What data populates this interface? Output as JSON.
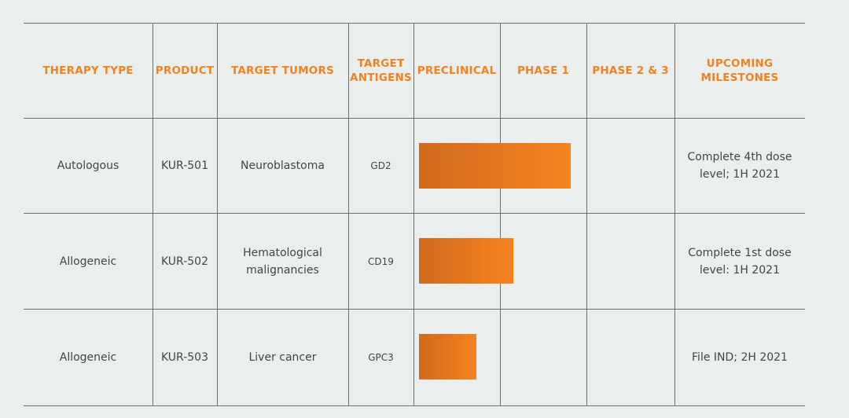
{
  "headers": {
    "therapy_type": "THERAPY TYPE",
    "product": "PRODUCT",
    "target_tumors": "TARGET TUMORS",
    "target_antigens": "TARGET\nANTIGENS",
    "preclinical": "PRECLINICAL",
    "phase1": "PHASE 1",
    "phase23": "PHASE 2 & 3",
    "milestones": "UPCOMING\nMILESTONES"
  },
  "rows": [
    {
      "therapy_type": "Autologous",
      "product": "KUR-501",
      "target_tumors": "Neuroblastoma",
      "target_antigen": "GD2",
      "milestone": "Complete 4th dose\nlevel; 1H 2021"
    },
    {
      "therapy_type": "Allogeneic",
      "product": "KUR-502",
      "target_tumors": "Hematological\nmalignancies",
      "target_antigen": "CD19",
      "milestone": "Complete 1st dose\nlevel: 1H 2021"
    },
    {
      "therapy_type": "Allogeneic",
      "product": "KUR-503",
      "target_tumors": "Liver cancer",
      "target_antigen": "GPC3",
      "milestone": "File IND; 2H 2021"
    }
  ],
  "colors": {
    "accent": "#f0831f",
    "bar_start": "#d2691d",
    "bar_end": "#f5841f",
    "background": "#ebeeef",
    "grid": "#6e6e6e"
  }
}
